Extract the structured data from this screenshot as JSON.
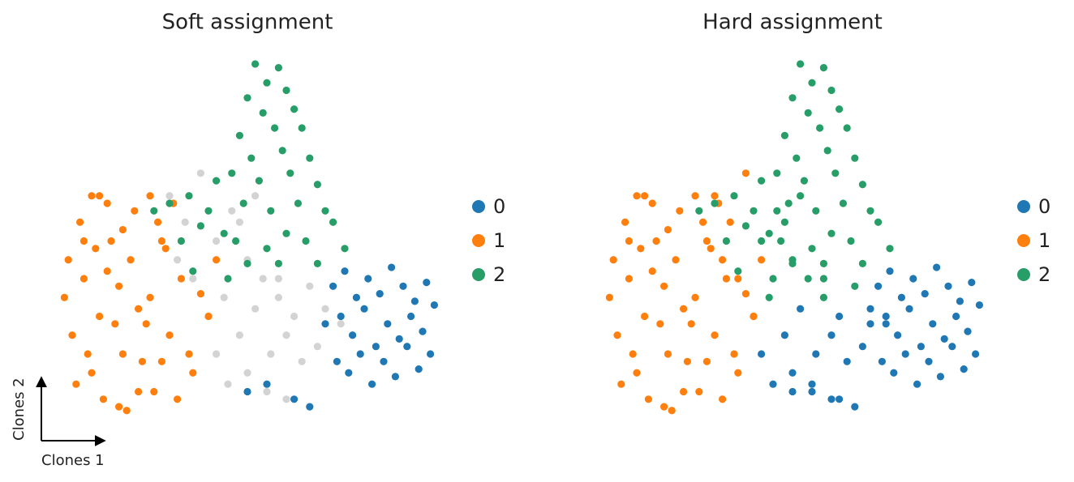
{
  "chart_data": [
    {
      "type": "scatter",
      "title": "Soft assignment",
      "xlabel": "Clones 1",
      "ylabel": "Clones 2",
      "xlim": [
        0,
        100
      ],
      "ylim": [
        0,
        100
      ],
      "legend": "right",
      "series": [
        {
          "color": "#d3d3d3",
          "x": [
            30,
            34,
            38,
            42,
            46,
            50,
            54,
            58,
            62,
            66,
            70,
            74,
            32,
            36,
            40,
            44,
            48,
            52,
            56,
            60,
            64,
            68,
            45,
            50,
            55,
            60,
            42,
            58,
            48,
            52
          ],
          "y": [
            62,
            55,
            68,
            50,
            58,
            45,
            40,
            35,
            30,
            38,
            32,
            28,
            45,
            40,
            30,
            35,
            25,
            32,
            20,
            25,
            18,
            22,
            12,
            15,
            10,
            8,
            20,
            40,
            55,
            62
          ]
        },
        {
          "name": "0",
          "color": "#1f77b4",
          "x": [
            72,
            75,
            78,
            81,
            84,
            87,
            90,
            93,
            96,
            98,
            70,
            74,
            77,
            80,
            83,
            86,
            89,
            92,
            95,
            73,
            76,
            79,
            82,
            85,
            88,
            91,
            94,
            97,
            50,
            55,
            62,
            66
          ],
          "y": [
            38,
            42,
            35,
            40,
            36,
            43,
            38,
            34,
            39,
            33,
            28,
            30,
            25,
            32,
            22,
            28,
            24,
            30,
            26,
            18,
            15,
            20,
            12,
            18,
            14,
            22,
            16,
            20,
            10,
            12,
            8,
            6
          ]
        },
        {
          "name": "1",
          "color": "#ff7f0e",
          "x": [
            3,
            5,
            8,
            10,
            12,
            15,
            18,
            20,
            22,
            25,
            27,
            30,
            33,
            36,
            40,
            42,
            4,
            7,
            11,
            14,
            17,
            21,
            24,
            28,
            31,
            35,
            38,
            6,
            9,
            13,
            16,
            19,
            23,
            26,
            29,
            32,
            10,
            14,
            18,
            22,
            25,
            28,
            8,
            12,
            17
          ],
          "y": [
            35,
            25,
            40,
            15,
            30,
            50,
            20,
            45,
            10,
            35,
            55,
            25,
            40,
            15,
            30,
            45,
            45,
            55,
            48,
            60,
            38,
            58,
            28,
            50,
            60,
            20,
            36,
            12,
            20,
            8,
            28,
            5,
            18,
            10,
            48,
            8,
            62,
            42,
            53,
            32,
            62,
            18,
            50,
            62,
            6
          ]
        },
        {
          "name": "2",
          "color": "#279e68",
          "x": [
            52,
            55,
            58,
            50,
            60,
            54,
            62,
            48,
            57,
            64,
            51,
            59,
            66,
            46,
            53,
            61,
            68,
            49,
            56,
            63,
            70,
            40,
            35,
            30,
            44,
            38,
            33,
            42,
            47,
            55,
            60,
            65,
            72,
            75,
            68,
            58,
            50,
            45,
            36,
            26
          ],
          "y": [
            97,
            92,
            96,
            88,
            90,
            84,
            85,
            78,
            80,
            80,
            72,
            74,
            72,
            68,
            66,
            68,
            65,
            60,
            58,
            60,
            58,
            58,
            62,
            60,
            52,
            54,
            50,
            66,
            50,
            48,
            52,
            50,
            55,
            48,
            44,
            44,
            44,
            40,
            42,
            58
          ]
        }
      ]
    },
    {
      "type": "scatter",
      "title": "Hard assignment",
      "xlim": [
        0,
        100
      ],
      "ylim": [
        0,
        100
      ],
      "legend": "right",
      "series": [
        {
          "name": "0",
          "color": "#1f77b4",
          "x": [
            72,
            75,
            78,
            81,
            84,
            87,
            90,
            93,
            96,
            98,
            70,
            74,
            77,
            80,
            83,
            86,
            89,
            92,
            95,
            73,
            76,
            79,
            82,
            85,
            88,
            91,
            94,
            97,
            50,
            55,
            62,
            66,
            62,
            70,
            74,
            48,
            52,
            56,
            60,
            64,
            68,
            45,
            50,
            55,
            60,
            42
          ],
          "y": [
            38,
            42,
            35,
            40,
            36,
            43,
            38,
            34,
            39,
            33,
            28,
            30,
            25,
            32,
            22,
            28,
            24,
            30,
            26,
            18,
            15,
            20,
            12,
            18,
            14,
            22,
            16,
            20,
            10,
            12,
            8,
            6,
            30,
            32,
            28,
            25,
            32,
            20,
            25,
            18,
            22,
            12,
            15,
            10,
            8,
            20
          ]
        },
        {
          "name": "1",
          "color": "#ff7f0e",
          "x": [
            3,
            5,
            8,
            10,
            12,
            15,
            18,
            20,
            22,
            25,
            27,
            30,
            33,
            36,
            40,
            42,
            4,
            7,
            11,
            14,
            17,
            21,
            24,
            28,
            31,
            35,
            38,
            6,
            9,
            13,
            16,
            19,
            23,
            26,
            29,
            32,
            10,
            14,
            18,
            22,
            25,
            28,
            8,
            12,
            17,
            30,
            34,
            38,
            32,
            36,
            40
          ],
          "y": [
            35,
            25,
            40,
            15,
            30,
            50,
            20,
            45,
            10,
            35,
            55,
            25,
            40,
            15,
            30,
            45,
            45,
            55,
            48,
            60,
            38,
            58,
            28,
            50,
            60,
            20,
            36,
            12,
            20,
            8,
            28,
            5,
            18,
            10,
            48,
            8,
            62,
            42,
            53,
            32,
            62,
            18,
            50,
            62,
            6,
            62,
            55,
            68,
            45,
            40,
            30
          ]
        },
        {
          "name": "2",
          "color": "#279e68",
          "x": [
            52,
            55,
            58,
            50,
            60,
            54,
            62,
            48,
            57,
            64,
            51,
            59,
            66,
            46,
            53,
            61,
            68,
            49,
            56,
            63,
            70,
            40,
            35,
            30,
            44,
            38,
            33,
            42,
            47,
            55,
            60,
            65,
            72,
            75,
            68,
            58,
            50,
            45,
            36,
            26,
            42,
            46,
            50,
            54,
            58,
            66,
            44,
            58,
            48,
            52
          ],
          "y": [
            97,
            92,
            96,
            88,
            90,
            84,
            85,
            78,
            80,
            80,
            72,
            74,
            72,
            68,
            66,
            68,
            65,
            60,
            58,
            60,
            58,
            58,
            62,
            60,
            52,
            54,
            50,
            66,
            50,
            48,
            52,
            50,
            55,
            48,
            44,
            44,
            44,
            40,
            42,
            58,
            50,
            58,
            45,
            40,
            35,
            38,
            35,
            40,
            55,
            62
          ]
        }
      ]
    }
  ]
}
